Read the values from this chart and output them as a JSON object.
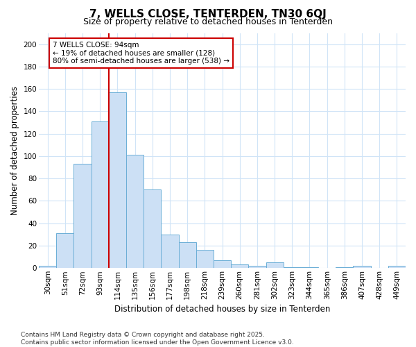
{
  "title": "7, WELLS CLOSE, TENTERDEN, TN30 6QJ",
  "subtitle": "Size of property relative to detached houses in Tenterden",
  "xlabel": "Distribution of detached houses by size in Tenterden",
  "ylabel": "Number of detached properties",
  "footnote": "Contains HM Land Registry data © Crown copyright and database right 2025.\nContains public sector information licensed under the Open Government Licence v3.0.",
  "bar_labels": [
    "30sqm",
    "51sqm",
    "72sqm",
    "93sqm",
    "114sqm",
    "135sqm",
    "156sqm",
    "177sqm",
    "198sqm",
    "218sqm",
    "239sqm",
    "260sqm",
    "281sqm",
    "302sqm",
    "323sqm",
    "344sqm",
    "365sqm",
    "386sqm",
    "407sqm",
    "428sqm",
    "449sqm"
  ],
  "bar_values": [
    2,
    31,
    93,
    131,
    157,
    101,
    70,
    30,
    23,
    16,
    7,
    3,
    2,
    5,
    1,
    1,
    0,
    1,
    2,
    0,
    2
  ],
  "bar_color": "#cce0f5",
  "bar_edge_color": "#6baed6",
  "vline_x": 3.5,
  "vline_color": "#cc0000",
  "annotation_text": "7 WELLS CLOSE: 94sqm\n← 19% of detached houses are smaller (128)\n80% of semi-detached houses are larger (538) →",
  "annotation_box_color": "white",
  "annotation_border_color": "#cc0000",
  "ylim": [
    0,
    210
  ],
  "yticks": [
    0,
    20,
    40,
    60,
    80,
    100,
    120,
    140,
    160,
    180,
    200
  ],
  "background_color": "#ffffff",
  "plot_bg_color": "#ffffff",
  "grid_color": "#d0e4f7",
  "title_fontsize": 11,
  "subtitle_fontsize": 9,
  "axis_label_fontsize": 8.5,
  "tick_fontsize": 7.5,
  "annotation_fontsize": 7.5,
  "footnote_fontsize": 6.5
}
